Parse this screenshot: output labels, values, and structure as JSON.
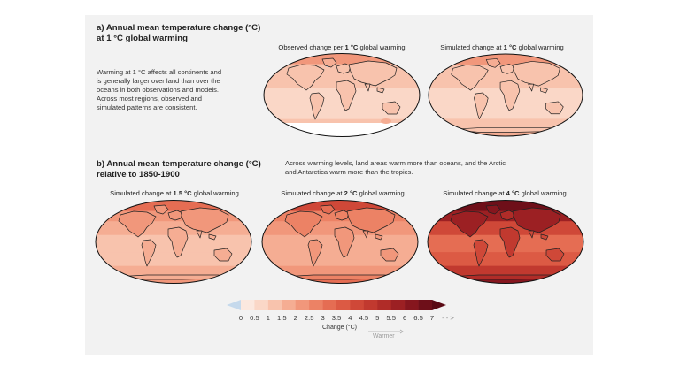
{
  "section_a": {
    "title_line1": "a) Annual mean temperature change (°C)",
    "title_line2": "at 1 °C global warming",
    "description": [
      "Warming at 1 °C affects all continents and",
      "is generally larger over land than over the",
      "oceans in both observations and models.",
      "Across most regions, observed and",
      "simulated patterns are consistent."
    ],
    "maps": [
      {
        "label_pre": "Observed change per ",
        "label_bold": "1 °C",
        "label_post": " global warming",
        "intensity": 1.0,
        "style": "observed"
      },
      {
        "label_pre": "Simulated change at ",
        "label_bold": "1 °C",
        "label_post": " global warming",
        "intensity": 1.0,
        "style": "simulated"
      }
    ]
  },
  "section_b": {
    "title_line1": "b) Annual mean temperature change (°C)",
    "title_line2": "relative to 1850-1900",
    "description": [
      "Across warming levels, land areas warm more than oceans, and the Arctic",
      "and Antarctica warm more than the tropics."
    ],
    "maps": [
      {
        "label_pre": "Simulated change at ",
        "label_bold": "1.5 °C",
        "label_post": " global warming",
        "intensity": 1.5,
        "style": "simulated"
      },
      {
        "label_pre": "Simulated change at ",
        "label_bold": "2 °C",
        "label_post": " global warming",
        "intensity": 2.0,
        "style": "simulated"
      },
      {
        "label_pre": "Simulated change at ",
        "label_bold": "4 °C",
        "label_post": " global warming",
        "intensity": 4.0,
        "style": "simulated"
      }
    ]
  },
  "colorbar": {
    "ticks": [
      "0",
      "0.5",
      "1",
      "1.5",
      "2",
      "2.5",
      "3",
      "3.5",
      "4",
      "4.5",
      "5",
      "5.5",
      "6",
      "6.5",
      "7"
    ],
    "arrow_suffix": "- - >",
    "title": "Change (°C)",
    "warmer_label": "Warmer",
    "colors": [
      "#fbe8df",
      "#fad7c7",
      "#f8c3ad",
      "#f5ad93",
      "#f1977b",
      "#ec8265",
      "#e56d53",
      "#dc5a44",
      "#cf4838",
      "#c1392f",
      "#b02c28",
      "#9c2023",
      "#86161e",
      "#6e0f19"
    ],
    "negative_color": "#c5d9ec"
  }
}
